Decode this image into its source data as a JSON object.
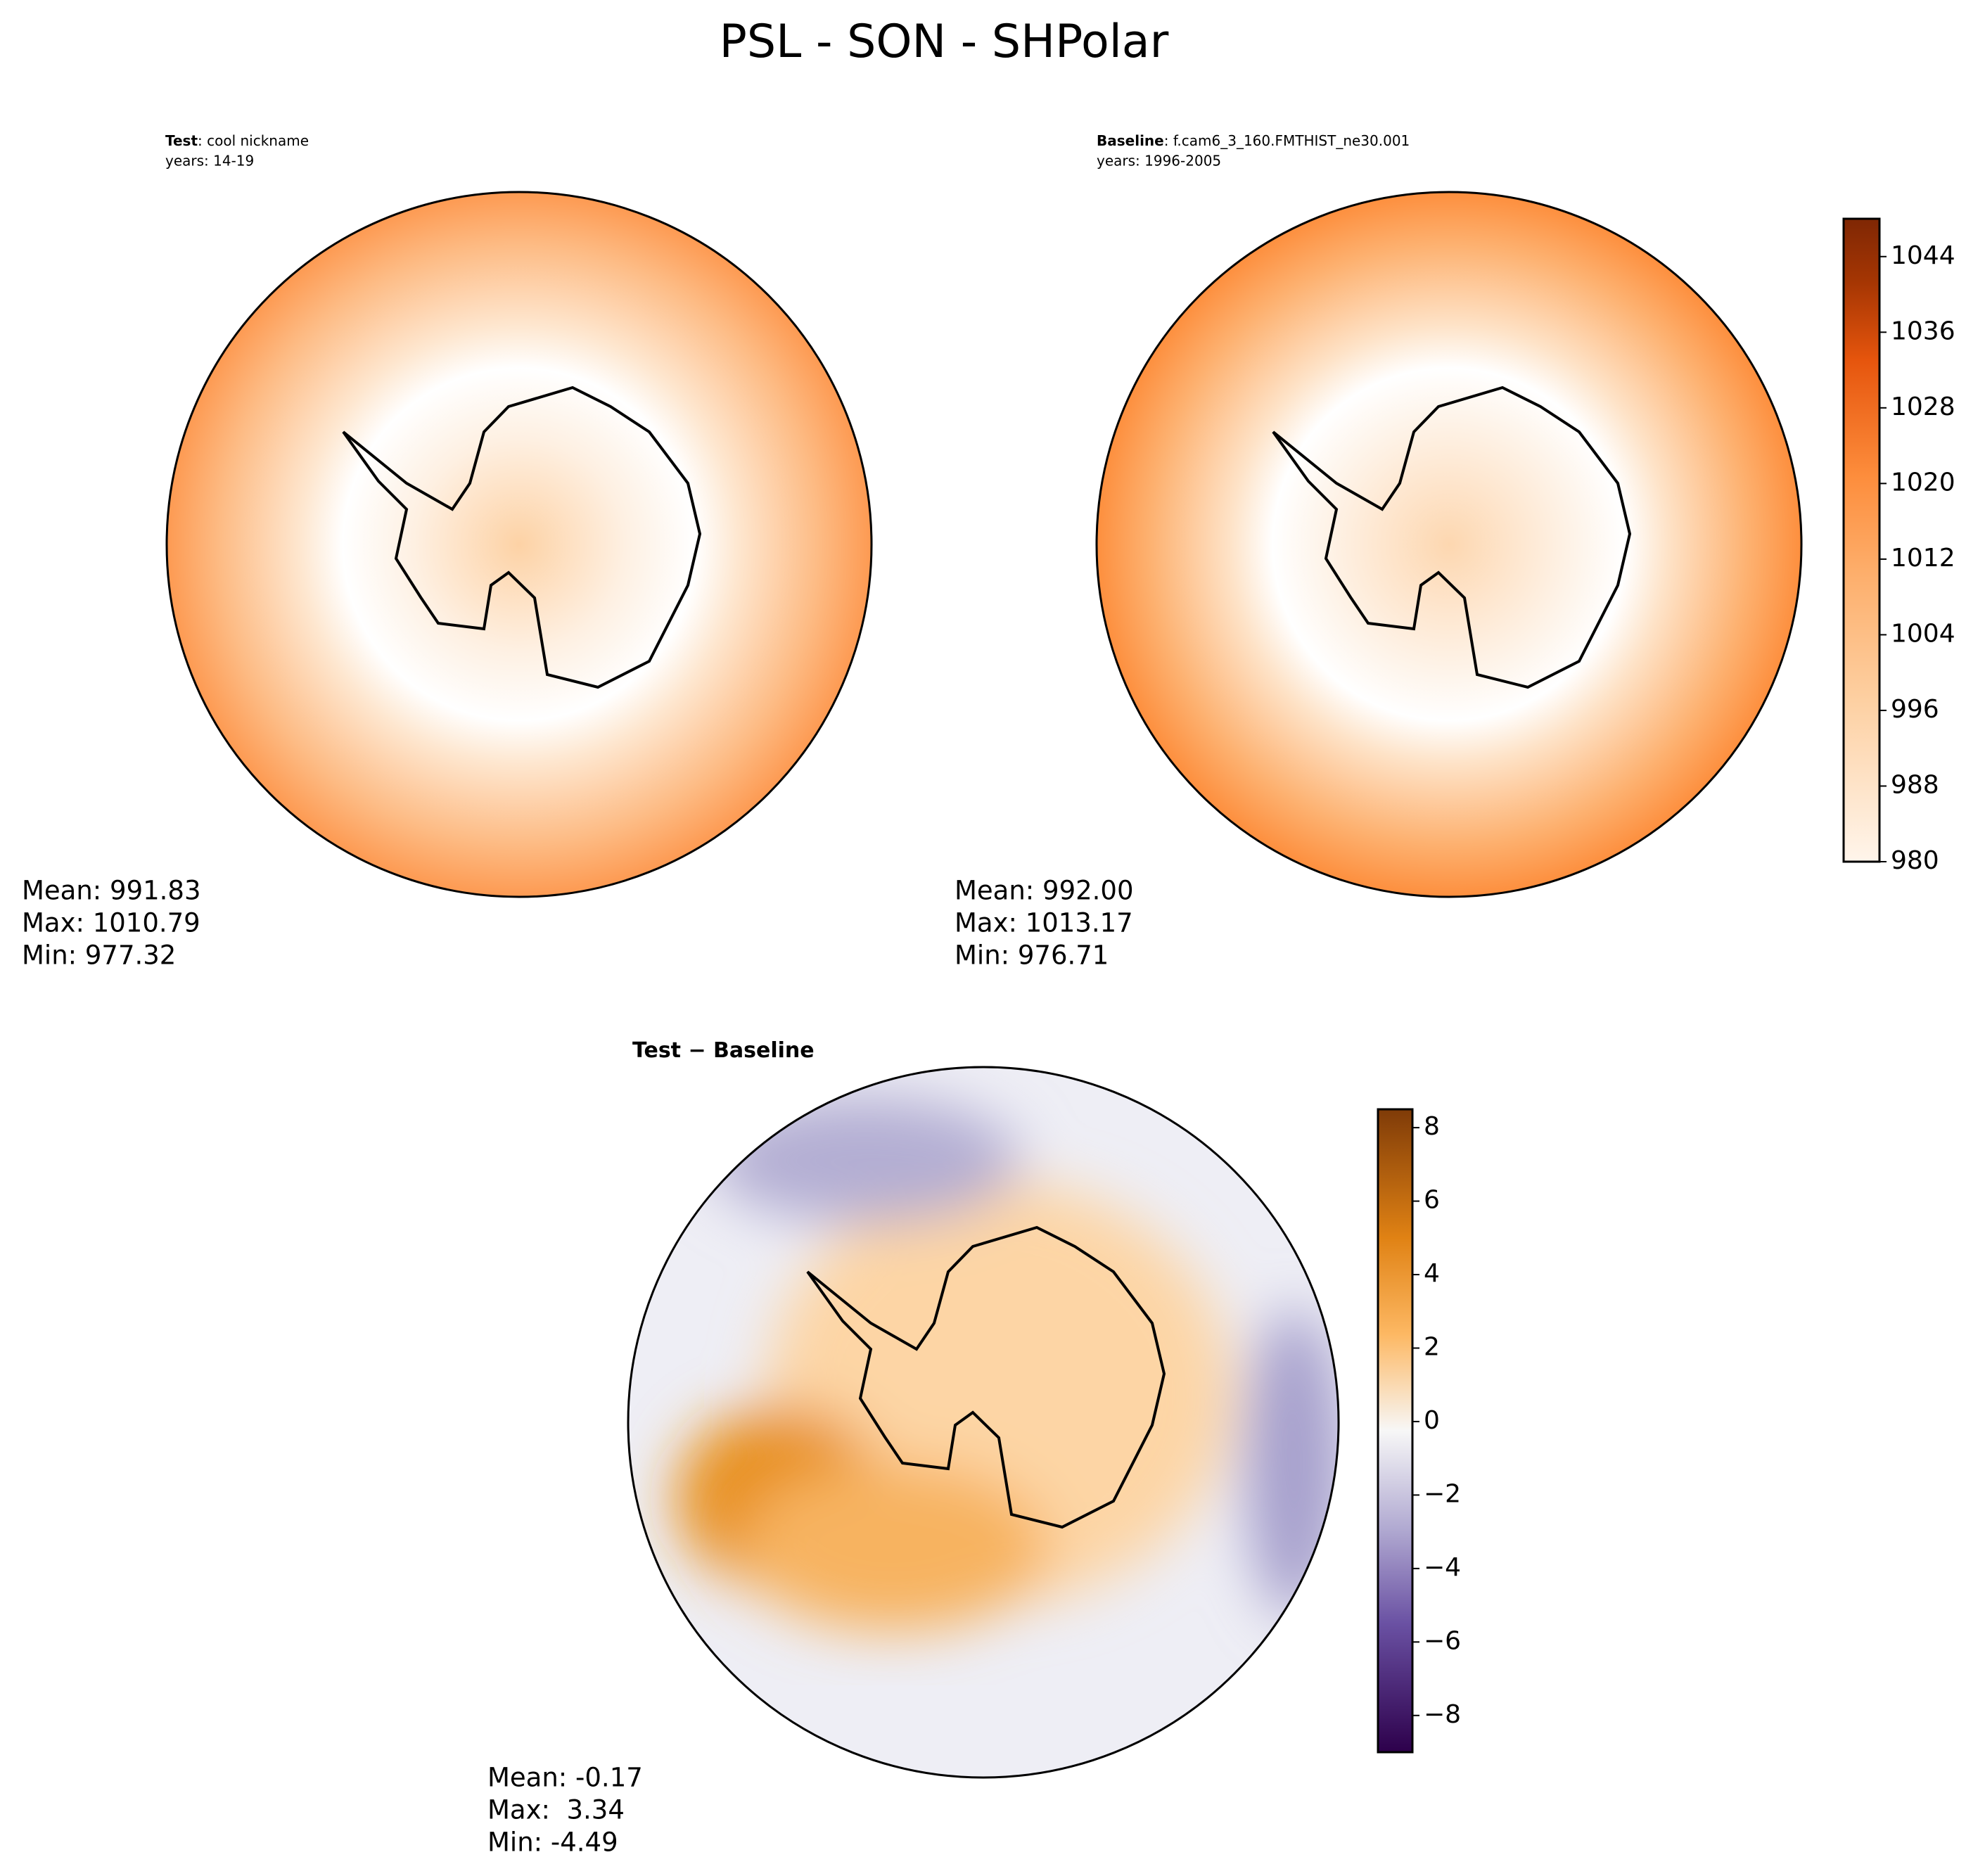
{
  "title": "PSL - SON - SHPolar",
  "panels": [
    {
      "name_bold": "Test",
      "name": ": cool nickname",
      "years": "years: 14-19",
      "stats": [
        "Mean: 991.83",
        "Max: 1010.79",
        "Min: 977.32"
      ]
    },
    {
      "name_bold": "Baseline",
      "name": ": f.cam6_3_160.FMTHIST_ne30.001",
      "years": "years: 1996-2005",
      "stats": [
        "Mean: 992.00",
        "Max: 1013.17",
        "Min: 976.71"
      ]
    },
    {
      "name_bold": "Test − Baseline",
      "stats": [
        "Mean: -0.17",
        "Max:  3.34",
        "Min: -4.49"
      ]
    }
  ],
  "colorbars": [
    {
      "lim": [
        980,
        1048
      ],
      "ticks": [
        980,
        988,
        996,
        1004,
        1012,
        1020,
        1028,
        1036,
        1044
      ]
    },
    {
      "lim": [
        -9,
        8.5
      ],
      "ticks": [
        {
          "value": -8,
          "label": "−8"
        },
        {
          "value": -6,
          "label": "−6"
        },
        {
          "value": -4,
          "label": "−4"
        },
        {
          "value": -2,
          "label": "−2"
        },
        0,
        2,
        4,
        6,
        8
      ]
    }
  ]
}
